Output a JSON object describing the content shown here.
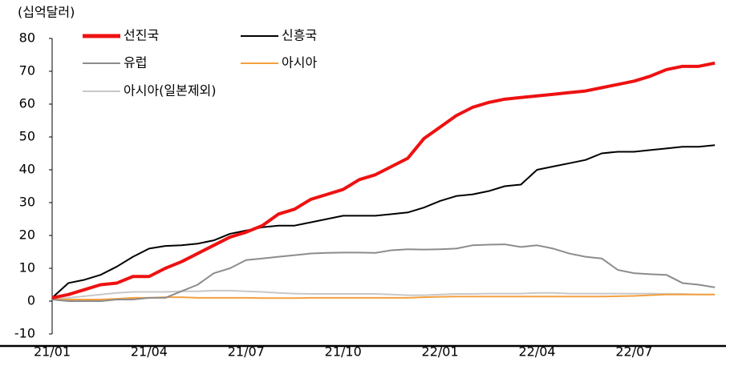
{
  "chart_data": {
    "type": "line",
    "unit_label": "(십억달러)",
    "categories": [
      "21/01",
      null,
      null,
      null,
      null,
      null,
      "21/04",
      null,
      null,
      null,
      null,
      null,
      "21/07",
      null,
      null,
      null,
      null,
      null,
      "21/10",
      null,
      null,
      null,
      null,
      null,
      "22/01",
      null,
      null,
      null,
      null,
      null,
      "22/04",
      null,
      null,
      null,
      null,
      null,
      "22/07",
      null,
      null,
      null,
      null,
      null
    ],
    "ylim": [
      -10,
      80
    ],
    "yticks": [
      -10,
      0,
      10,
      20,
      30,
      40,
      50,
      60,
      70,
      80
    ],
    "series": [
      {
        "name": "선진국",
        "color": "#ee1111",
        "values": [
          1,
          2,
          3.5,
          5,
          5.5,
          7.5,
          7.5,
          10,
          12,
          14.5,
          17,
          19.5,
          21,
          23,
          26.5,
          28,
          31,
          32.5,
          34,
          37,
          38.5,
          41,
          43.5,
          49.5,
          53,
          56.5,
          59,
          60.5,
          61.5,
          62,
          62.5,
          63,
          63.5,
          64,
          65,
          66,
          67,
          68.5,
          70.5,
          71.5,
          71.5,
          72.5
        ]
      },
      {
        "name": "신흥국",
        "color": "#000000",
        "values": [
          1,
          5.5,
          6.5,
          8,
          10.5,
          13.5,
          16,
          16.8,
          17,
          17.5,
          18.5,
          20.5,
          21.5,
          22.5,
          23,
          23,
          24,
          25,
          26,
          26,
          26,
          26.5,
          27,
          28.5,
          30.5,
          32,
          32.5,
          33.5,
          35,
          35.5,
          40,
          41,
          42,
          43,
          45,
          45.5,
          45.5,
          46,
          46.5,
          47,
          47,
          47.5
        ]
      },
      {
        "name": "유럽",
        "color": "#8c8c8c",
        "values": [
          0.5,
          0,
          0,
          0,
          0.5,
          0.5,
          1,
          1,
          3,
          5,
          8.5,
          10,
          12.5,
          13,
          13.5,
          14,
          14.5,
          14.7,
          14.8,
          14.8,
          14.7,
          15.5,
          15.8,
          15.7,
          15.8,
          16,
          17,
          17.2,
          17.3,
          16.5,
          17,
          16,
          14.5,
          13.5,
          13,
          9.5,
          8.5,
          8.2,
          8,
          5.5,
          5,
          4.2
        ]
      },
      {
        "name": "아시아",
        "color": "#f4a040",
        "values": [
          0.5,
          0.5,
          0.5,
          0.5,
          0.7,
          1,
          1,
          1.2,
          1.2,
          1,
          1,
          1,
          1,
          0.9,
          0.9,
          0.9,
          1,
          1,
          1,
          1,
          1,
          1,
          1,
          1.2,
          1.3,
          1.4,
          1.4,
          1.4,
          1.4,
          1.4,
          1.4,
          1.4,
          1.4,
          1.4,
          1.4,
          1.5,
          1.6,
          1.8,
          2,
          2,
          2,
          2
        ]
      },
      {
        "name": "아시아(일본제외)",
        "color": "#c8c8c8",
        "values": [
          0.5,
          1,
          1.5,
          2,
          2.5,
          2.8,
          2.8,
          2.8,
          3,
          3,
          3.2,
          3.2,
          3,
          2.8,
          2.5,
          2.3,
          2.2,
          2.2,
          2.2,
          2.2,
          2.2,
          2,
          1.8,
          1.8,
          2,
          2.2,
          2.2,
          2.3,
          2.3,
          2.3,
          2.5,
          2.5,
          2.3,
          2.3,
          2.3,
          2.3,
          2.3,
          2.3,
          2.2,
          2.2,
          2,
          2
        ]
      }
    ]
  }
}
